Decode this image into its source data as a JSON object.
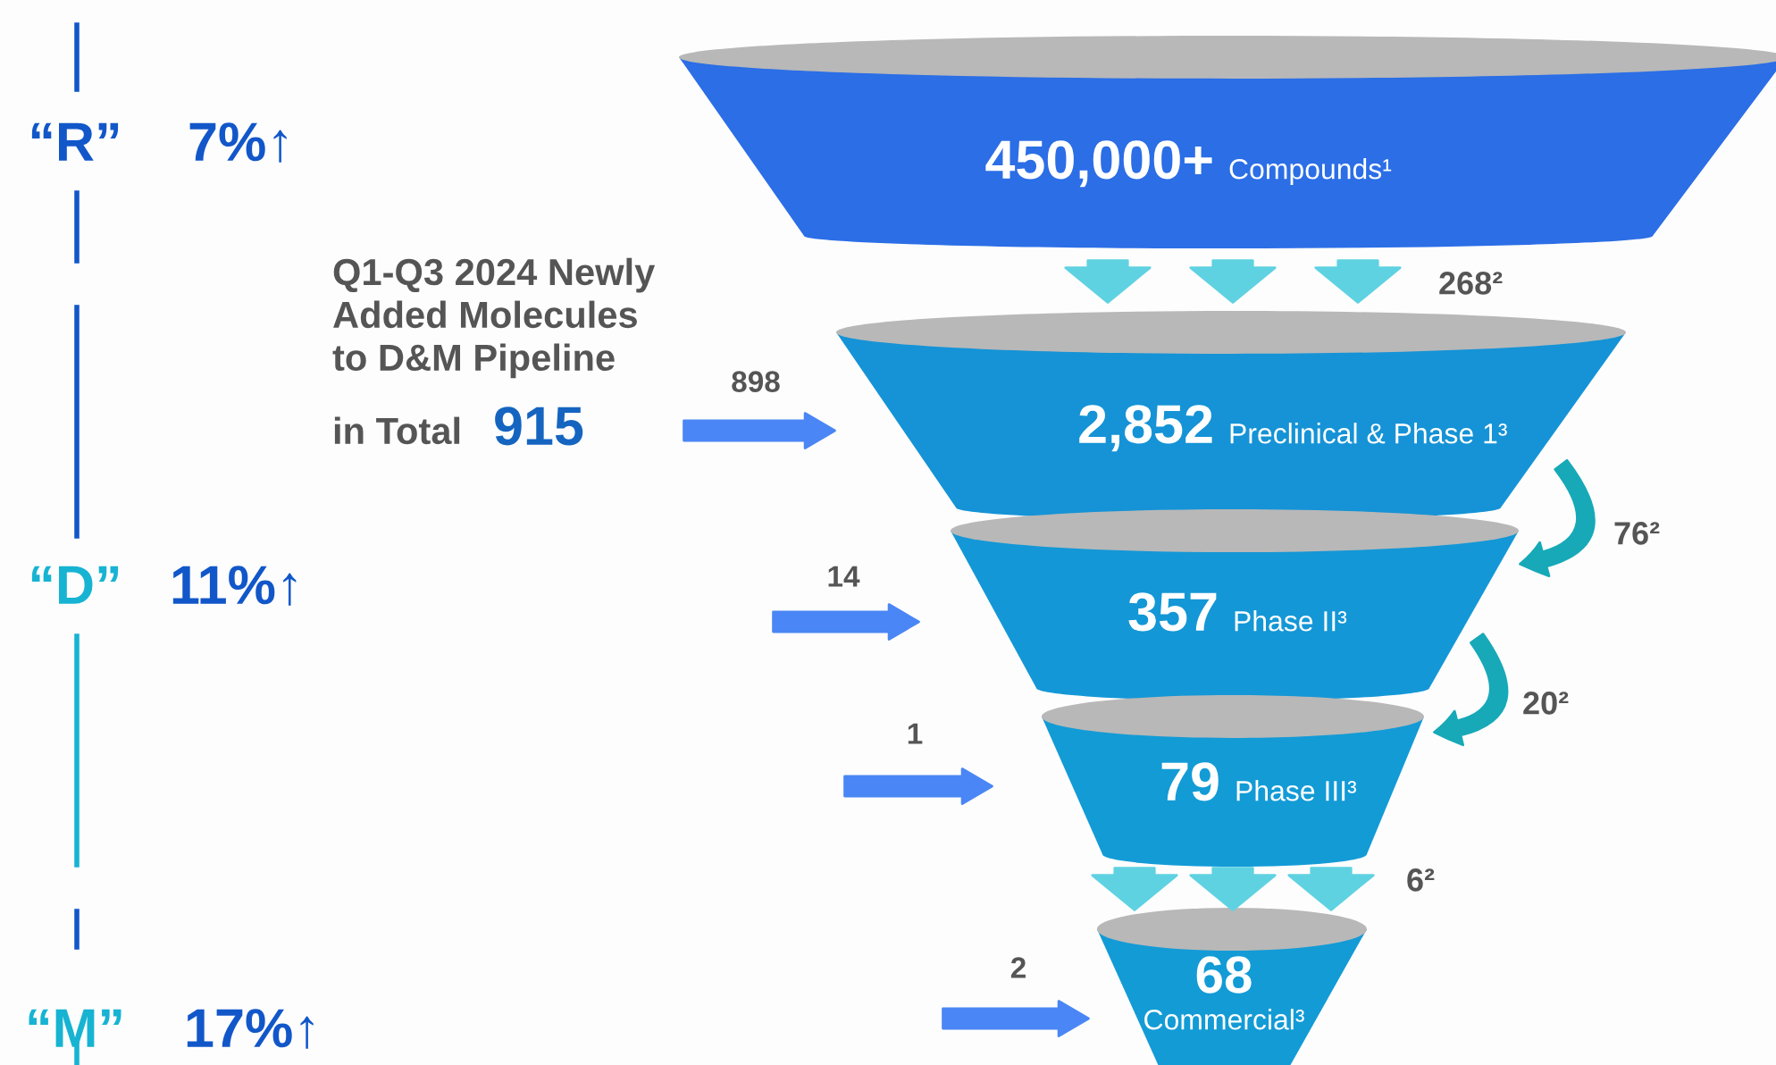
{
  "chart_data": {
    "type": "other",
    "categories": [
      "Compounds¹",
      "Preclinical & Phase 1³",
      "Phase II³",
      "Phase III³",
      "Commercial³"
    ],
    "values": [
      450000,
      2852,
      357,
      79,
      68
    ],
    "value_labels": [
      "450,000+",
      "2,852",
      "357",
      "79",
      "68"
    ],
    "colors": [
      "#2b6ee6",
      "#1593d6",
      "#1497d6",
      "#139bd6",
      "#139bd6"
    ],
    "annotations": [
      "“R”",
      "7%↑",
      "“D”",
      "11%↑",
      "“M”",
      "17%↑",
      "Q1-Q3 2024 Newly\nAdded Molecules\nto D&M Pipeline",
      "in Total",
      "915",
      "898",
      "14",
      "1",
      "2",
      "268²",
      "76²",
      "20²",
      "6²"
    ]
  }
}
